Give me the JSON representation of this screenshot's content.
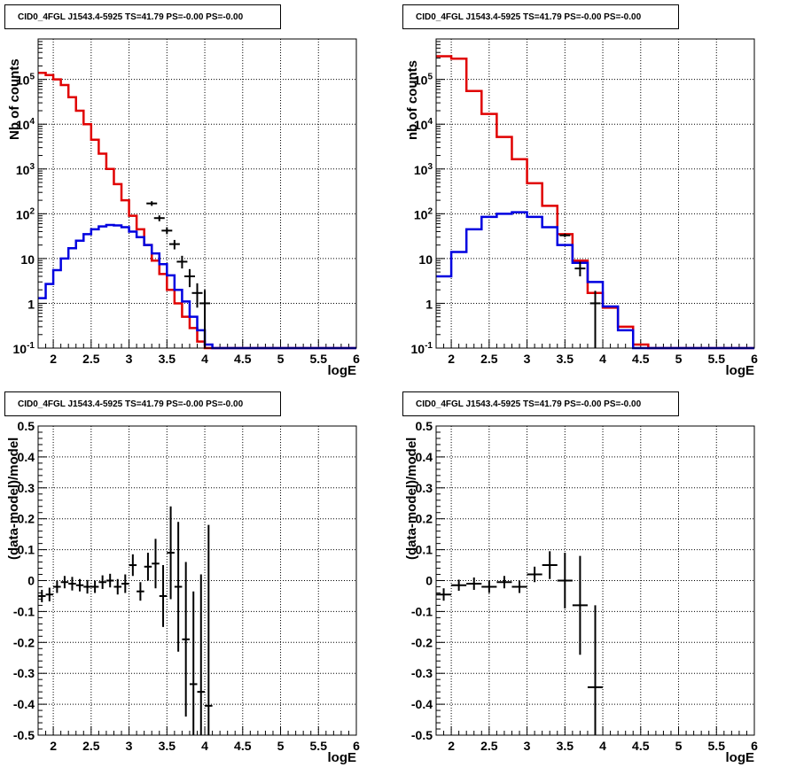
{
  "chart_data": [
    {
      "id": "p1",
      "type": "line",
      "title": "CID0_4FGL J1543.4-5925 TS=41.79 PS=-0.00 PS=-0.00",
      "xlabel": "logE",
      "ylabel": "Nb of counts",
      "xlim": [
        1.8,
        6.0
      ],
      "ylim": [
        0.1,
        800000
      ],
      "yscale": "log",
      "grid": true,
      "xticks": [
        "2",
        "2.5",
        "3",
        "3.5",
        "4",
        "4.5",
        "5",
        "5.5",
        "6"
      ],
      "yticks": [
        "10^-1",
        "1",
        "10",
        "10^2",
        "10^3",
        "10^4",
        "10^5"
      ],
      "edges": [
        1.8,
        1.9,
        2.0,
        2.1,
        2.2,
        2.3,
        2.4,
        2.5,
        2.6,
        2.7,
        2.8,
        2.9,
        3.0,
        3.1,
        3.2,
        3.3,
        3.4,
        3.5,
        3.6,
        3.7,
        3.8,
        3.9,
        4.0,
        4.1,
        4.2,
        4.3,
        4.4,
        4.5,
        4.6,
        4.7,
        4.8,
        4.9,
        5.0,
        5.1,
        5.2,
        5.3,
        5.4,
        5.5,
        5.6,
        5.7,
        5.8,
        5.9,
        6.0
      ],
      "series": [
        {
          "color": "#e00000",
          "values": [
            140000,
            125000,
            100000,
            75000,
            40000,
            20000,
            10000,
            4500,
            2200,
            1000,
            460,
            200,
            90,
            45,
            20,
            9,
            4.5,
            2,
            1,
            0.5,
            0.28,
            0.14,
            0.1,
            0.1,
            0.1,
            0.1,
            0.1,
            0.1,
            0.1,
            0.1,
            0.1,
            0.1,
            0.1,
            0.1,
            0.1,
            0.1,
            0.1,
            0.1,
            0.1,
            0.1,
            0.1,
            0.1
          ]
        },
        {
          "color": "#0000e0",
          "values": [
            1.3,
            2.7,
            5.5,
            10,
            17,
            25,
            35,
            45,
            52,
            56,
            55,
            50,
            40,
            30,
            20,
            13,
            7.5,
            4.2,
            2,
            1.1,
            0.5,
            0.25,
            0.12,
            0.1,
            0.1,
            0.1,
            0.1,
            0.1,
            0.1,
            0.1,
            0.1,
            0.1,
            0.1,
            0.1,
            0.1,
            0.1,
            0.1,
            0.1,
            0.1,
            0.1,
            0.1,
            0.1
          ]
        }
      ],
      "points": [
        {
          "x": 3.3,
          "y": 170,
          "ylo": 150,
          "yhi": 190
        },
        {
          "x": 3.4,
          "y": 80,
          "ylo": 68,
          "yhi": 92
        },
        {
          "x": 3.5,
          "y": 42,
          "ylo": 35,
          "yhi": 50
        },
        {
          "x": 3.6,
          "y": 21,
          "ylo": 16,
          "yhi": 26
        },
        {
          "x": 3.7,
          "y": 8.5,
          "ylo": 6,
          "yhi": 11.5
        },
        {
          "x": 3.8,
          "y": 4,
          "ylo": 2.3,
          "yhi": 5.8
        },
        {
          "x": 3.9,
          "y": 1.7,
          "ylo": 0.8,
          "yhi": 2.8
        },
        {
          "x": 4.0,
          "y": 1,
          "ylo": 0.1,
          "yhi": 2
        }
      ]
    },
    {
      "id": "p2",
      "type": "line",
      "title": "CID0_4FGL J1543.4-5925 TS=41.79 PS=-0.00 PS=-0.00",
      "xlabel": "logE",
      "ylabel": "nb of counts",
      "xlim": [
        1.8,
        6.0
      ],
      "ylim": [
        0.1,
        800000
      ],
      "yscale": "log",
      "grid": true,
      "xticks": [
        "2",
        "2.5",
        "3",
        "3.5",
        "4",
        "4.5",
        "5",
        "5.5",
        "6"
      ],
      "yticks": [
        "10^-1",
        "1",
        "10",
        "10^2",
        "10^3",
        "10^4",
        "10^5"
      ],
      "edges": [
        1.8,
        2.0,
        2.2,
        2.4,
        2.6,
        2.8,
        3.0,
        3.2,
        3.4,
        3.6,
        3.8,
        4.0,
        4.2,
        4.4,
        4.6,
        4.8,
        5.0,
        5.2,
        5.4,
        5.6,
        5.8,
        6.0
      ],
      "series": [
        {
          "color": "#e00000",
          "values": [
            330000,
            290000,
            55000,
            17000,
            5200,
            1650,
            480,
            150,
            35,
            9,
            1.7,
            0.8,
            0.3,
            0.12,
            0.1,
            0.1,
            0.1,
            0.1,
            0.1,
            0.1,
            0.1
          ]
        },
        {
          "color": "#0000e0",
          "values": [
            4,
            14,
            45,
            85,
            100,
            108,
            85,
            50,
            20,
            8,
            3,
            0.85,
            0.25,
            0.1,
            0.1,
            0.1,
            0.1,
            0.1,
            0.1,
            0.1,
            0.1
          ]
        }
      ],
      "points": [
        {
          "x": 3.5,
          "y": 33,
          "ylo": 30,
          "yhi": 36
        },
        {
          "x": 3.7,
          "y": 6,
          "ylo": 4,
          "yhi": 8.5
        },
        {
          "x": 3.9,
          "y": 1,
          "ylo": 0.1,
          "yhi": 1.9
        }
      ]
    },
    {
      "id": "p3",
      "type": "scatter",
      "title": "CID0_4FGL J1543.4-5925 TS=41.79 PS=-0.00 PS=-0.00",
      "xlabel": "logE",
      "ylabel": "(data-model)/model",
      "xlim": [
        1.8,
        6.0
      ],
      "ylim": [
        -0.5,
        0.5
      ],
      "grid": true,
      "xticks": [
        "2",
        "2.5",
        "3",
        "3.5",
        "4",
        "4.5",
        "5",
        "5.5",
        "6"
      ],
      "yticks": [
        "-0.5",
        "-0.4",
        "-0.3",
        "-0.2",
        "-0.1",
        "0",
        "0.1",
        "0.2",
        "0.3",
        "0.4",
        "0.5"
      ],
      "points": [
        {
          "x": 1.85,
          "y": -0.05,
          "err": 0.02,
          "xerr": 0.05
        },
        {
          "x": 1.95,
          "y": -0.045,
          "err": 0.022,
          "xerr": 0.05
        },
        {
          "x": 2.05,
          "y": -0.02,
          "err": 0.02,
          "xerr": 0.05
        },
        {
          "x": 2.15,
          "y": -0.005,
          "err": 0.02,
          "xerr": 0.05
        },
        {
          "x": 2.25,
          "y": -0.01,
          "err": 0.022,
          "xerr": 0.05
        },
        {
          "x": 2.35,
          "y": -0.015,
          "err": 0.02,
          "xerr": 0.05
        },
        {
          "x": 2.45,
          "y": -0.02,
          "err": 0.022,
          "xerr": 0.05
        },
        {
          "x": 2.55,
          "y": -0.02,
          "err": 0.02,
          "xerr": 0.05
        },
        {
          "x": 2.65,
          "y": -0.005,
          "err": 0.022,
          "xerr": 0.05
        },
        {
          "x": 2.75,
          "y": 0.0,
          "err": 0.022,
          "xerr": 0.05
        },
        {
          "x": 2.85,
          "y": -0.02,
          "err": 0.025,
          "xerr": 0.05
        },
        {
          "x": 2.95,
          "y": -0.01,
          "err": 0.03,
          "xerr": 0.05
        },
        {
          "x": 3.05,
          "y": 0.05,
          "err": 0.035,
          "xerr": 0.05
        },
        {
          "x": 3.15,
          "y": -0.035,
          "err": 0.03,
          "xerr": 0.05
        },
        {
          "x": 3.25,
          "y": 0.045,
          "err": 0.045,
          "xerr": 0.05
        },
        {
          "x": 3.35,
          "y": 0.055,
          "err": 0.08,
          "xerr": 0.05
        },
        {
          "x": 3.45,
          "y": -0.05,
          "err": 0.1,
          "xerr": 0.05
        },
        {
          "x": 3.55,
          "y": 0.09,
          "err": 0.15,
          "xerr": 0.05
        },
        {
          "x": 3.65,
          "y": -0.02,
          "err": 0.21,
          "xerr": 0.05
        },
        {
          "x": 3.75,
          "y": -0.19,
          "err": 0.25,
          "xerr": 0.05
        },
        {
          "x": 3.85,
          "y": -0.335,
          "err": 0.3,
          "xerr": 0.05
        },
        {
          "x": 3.95,
          "y": -0.36,
          "err": 0.38,
          "xerr": 0.05
        },
        {
          "x": 4.05,
          "y": -0.405,
          "err": 0.585,
          "xerr": 0.05
        }
      ]
    },
    {
      "id": "p4",
      "type": "scatter",
      "title": "CID0_4FGL J1543.4-5925 TS=41.79 PS=-0.00 PS=-0.00",
      "xlabel": "logE",
      "ylabel": "(data-model)/model",
      "xlim": [
        1.8,
        6.0
      ],
      "ylim": [
        -0.5,
        0.5
      ],
      "grid": true,
      "xticks": [
        "2",
        "2.5",
        "3",
        "3.5",
        "4",
        "4.5",
        "5",
        "5.5",
        "6"
      ],
      "yticks": [
        "-0.5",
        "-0.4",
        "-0.3",
        "-0.2",
        "-0.1",
        "0",
        "0.1",
        "0.2",
        "0.3",
        "0.4",
        "0.5"
      ],
      "points": [
        {
          "x": 1.9,
          "y": -0.045,
          "err": 0.02,
          "xerr": 0.1
        },
        {
          "x": 2.1,
          "y": -0.015,
          "err": 0.018,
          "xerr": 0.1
        },
        {
          "x": 2.3,
          "y": -0.01,
          "err": 0.02,
          "xerr": 0.1
        },
        {
          "x": 2.5,
          "y": -0.02,
          "err": 0.02,
          "xerr": 0.1
        },
        {
          "x": 2.7,
          "y": -0.005,
          "err": 0.02,
          "xerr": 0.1
        },
        {
          "x": 2.9,
          "y": -0.02,
          "err": 0.02,
          "xerr": 0.1
        },
        {
          "x": 3.1,
          "y": 0.02,
          "err": 0.025,
          "xerr": 0.1
        },
        {
          "x": 3.3,
          "y": 0.05,
          "err": 0.045,
          "xerr": 0.1
        },
        {
          "x": 3.5,
          "y": 0.0,
          "err": 0.09,
          "xerr": 0.1
        },
        {
          "x": 3.7,
          "y": -0.08,
          "err": 0.16,
          "xerr": 0.1
        },
        {
          "x": 3.9,
          "y": -0.345,
          "err": 0.265,
          "xerr": 0.1
        }
      ]
    }
  ]
}
